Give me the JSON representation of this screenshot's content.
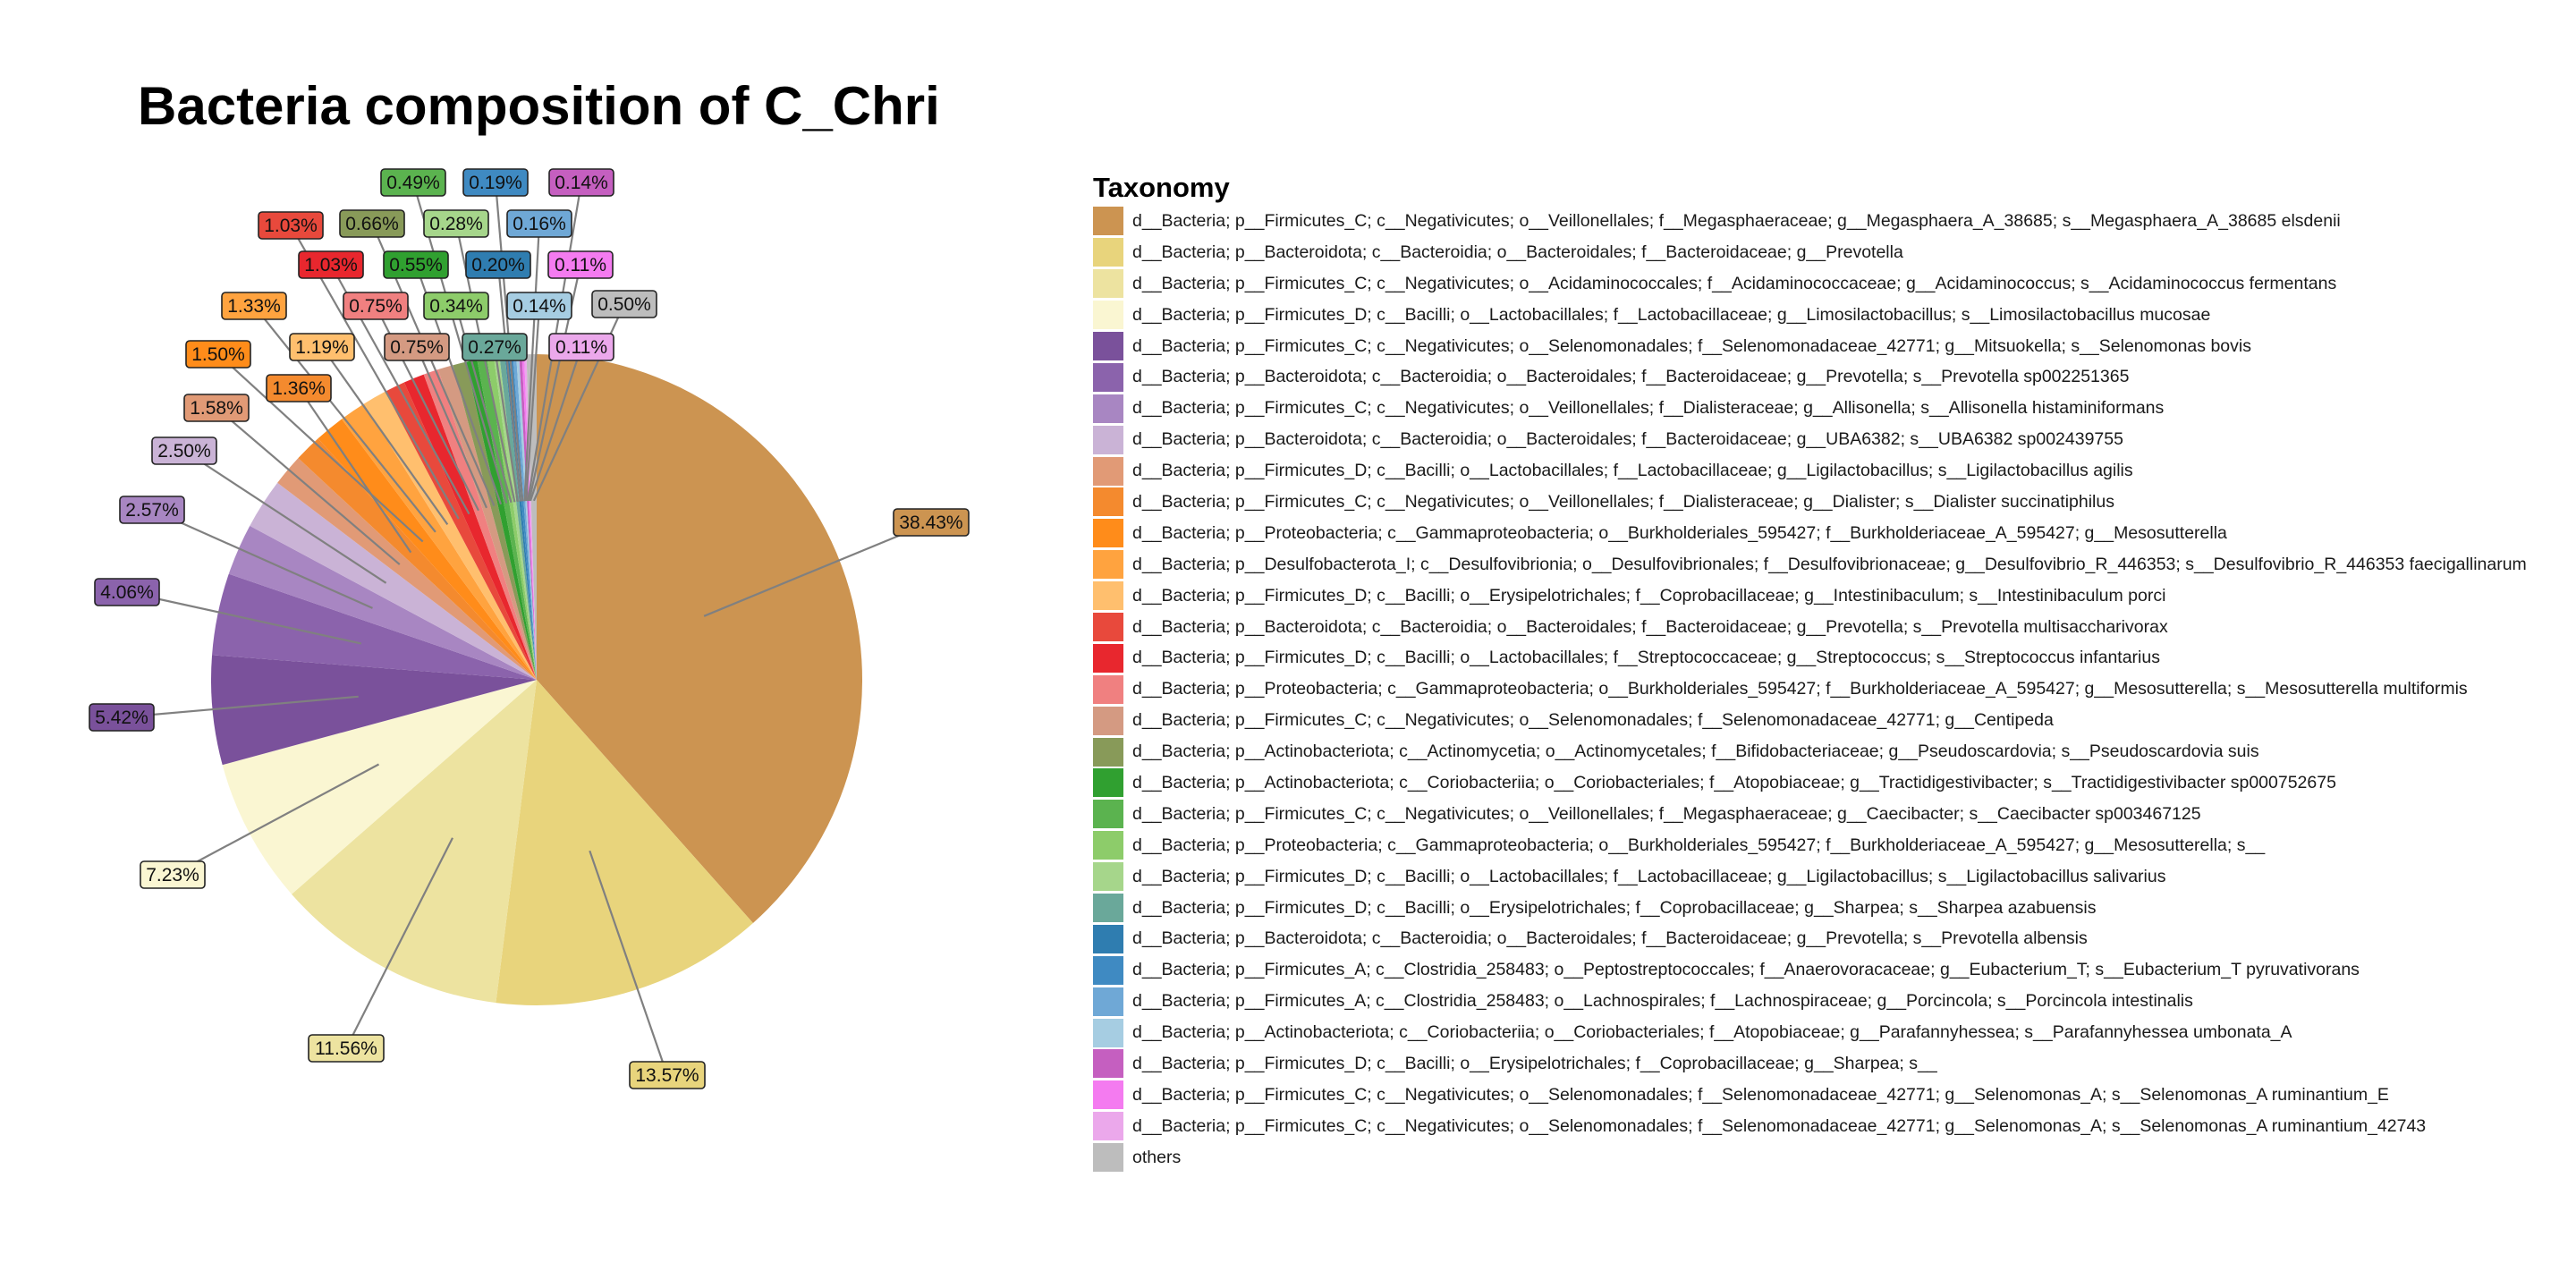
{
  "chart_data": {
    "type": "pie",
    "title": "Bacteria composition of C_Chri",
    "legend_title": "Taxonomy",
    "slices": [
      {
        "label": "d__Bacteria; p__Firmicutes_C; c__Negativicutes; o__Veillonellales; f__Megasphaeraceae; g__Megasphaera_A_38685; s__Megasphaera_A_38685 elsdenii",
        "value": 38.43,
        "text": "38.43%",
        "color": "#CC9451"
      },
      {
        "label": "d__Bacteria; p__Bacteroidota; c__Bacteroidia; o__Bacteroidales; f__Bacteroidaceae; g__Prevotella",
        "value": 13.57,
        "text": "13.57%",
        "color": "#E8D47C"
      },
      {
        "label": "d__Bacteria; p__Firmicutes_C; c__Negativicutes; o__Acidaminococcales; f__Acidaminococcaceae; g__Acidaminococcus; s__Acidaminococcus fermentans",
        "value": 11.56,
        "text": "11.56%",
        "color": "#EDE3A0"
      },
      {
        "label": "d__Bacteria; p__Firmicutes_D; c__Bacilli; o__Lactobacillales; f__Lactobacillaceae; g__Limosilactobacillus; s__Limosilactobacillus mucosae",
        "value": 7.23,
        "text": "7.23%",
        "color": "#FAF6D2"
      },
      {
        "label": "d__Bacteria; p__Firmicutes_C; c__Negativicutes; o__Selenomonadales; f__Selenomonadaceae_42771; g__Mitsuokella; s__Selenomonas bovis",
        "value": 5.42,
        "text": "5.42%",
        "color": "#7A519B"
      },
      {
        "label": "d__Bacteria; p__Bacteroidota; c__Bacteroidia; o__Bacteroidales; f__Bacteroidaceae; g__Prevotella; s__Prevotella sp002251365",
        "value": 4.06,
        "text": "4.06%",
        "color": "#8B63AC"
      },
      {
        "label": "d__Bacteria; p__Firmicutes_C; c__Negativicutes; o__Veillonellales; f__Dialisteraceae; g__Allisonella; s__Allisonella histaminiformans",
        "value": 2.57,
        "text": "2.57%",
        "color": "#A886C2"
      },
      {
        "label": "d__Bacteria; p__Bacteroidota; c__Bacteroidia; o__Bacteroidales; f__Bacteroidaceae; g__UBA6382; s__UBA6382 sp002439755",
        "value": 2.5,
        "text": "2.50%",
        "color": "#CAB3D6"
      },
      {
        "label": "d__Bacteria; p__Firmicutes_D; c__Bacilli; o__Lactobacillales; f__Lactobacillaceae; g__Ligilactobacillus; s__Ligilactobacillus agilis",
        "value": 1.58,
        "text": "1.58%",
        "color": "#E19A76"
      },
      {
        "label": "d__Bacteria; p__Firmicutes_C; c__Negativicutes; o__Veillonellales; f__Dialisteraceae; g__Dialister; s__Dialister succinatiphilus",
        "value": 1.36,
        "text": "1.36%",
        "color": "#F48A2E"
      },
      {
        "label": "d__Bacteria; p__Proteobacteria; c__Gammaproteobacteria; o__Burkholderiales_595427; f__Burkholderiaceae_A_595427; g__Mesosutterella",
        "value": 1.5,
        "text": "1.50%",
        "color": "#FF8C1A"
      },
      {
        "label": "d__Bacteria; p__Desulfobacterota_I; c__Desulfovibrionia; o__Desulfovibrionales; f__Desulfovibrionaceae; g__Desulfovibrio_R_446353; s__Desulfovibrio_R_446353 faecigallinarum",
        "value": 1.33,
        "text": "1.33%",
        "color": "#FFA33F"
      },
      {
        "label": "d__Bacteria; p__Firmicutes_D; c__Bacilli; o__Erysipelotrichales; f__Coprobacillaceae; g__Intestinibaculum; s__Intestinibaculum porci",
        "value": 1.19,
        "text": "1.19%",
        "color": "#FFBF6E"
      },
      {
        "label": "d__Bacteria; p__Bacteroidota; c__Bacteroidia; o__Bacteroidales; f__Bacteroidaceae; g__Prevotella; s__Prevotella multisaccharivorax",
        "value": 1.03,
        "text": "1.03%",
        "color": "#E8493C"
      },
      {
        "label": "d__Bacteria; p__Firmicutes_D; c__Bacilli; o__Lactobacillales; f__Streptococcaceae; g__Streptococcus; s__Streptococcus infantarius",
        "value": 1.03,
        "text": "1.03%",
        "color": "#E8272E"
      },
      {
        "label": "d__Bacteria; p__Proteobacteria; c__Gammaproteobacteria; o__Burkholderiales_595427; f__Burkholderiaceae_A_595427; g__Mesosutterella; s__Mesosutterella multiformis",
        "value": 0.75,
        "text": "0.75%",
        "color": "#F08080"
      },
      {
        "label": "d__Bacteria; p__Firmicutes_C; c__Negativicutes; o__Selenomonadales; f__Selenomonadaceae_42771; g__Centipeda",
        "value": 0.75,
        "text": "0.75%",
        "color": "#D49A82"
      },
      {
        "label": "d__Bacteria; p__Actinobacteriota; c__Actinomycetia; o__Actinomycetales; f__Bifidobacteriaceae; g__Pseudoscardovia; s__Pseudoscardovia suis",
        "value": 0.66,
        "text": "0.66%",
        "color": "#889A59"
      },
      {
        "label": "d__Bacteria; p__Actinobacteriota; c__Coriobacteriia; o__Coriobacteriales; f__Atopobiaceae; g__Tractidigestivibacter; s__Tractidigestivibacter sp000752675",
        "value": 0.55,
        "text": "0.55%",
        "color": "#30A030"
      },
      {
        "label": "d__Bacteria; p__Firmicutes_C; c__Negativicutes; o__Veillonellales; f__Megasphaeraceae; g__Caecibacter; s__Caecibacter sp003467125",
        "value": 0.49,
        "text": "0.49%",
        "color": "#5BB34F"
      },
      {
        "label": "d__Bacteria; p__Proteobacteria; c__Gammaproteobacteria; o__Burkholderiales_595427; f__Burkholderiaceae_A_595427; g__Mesosutterella; s__",
        "value": 0.34,
        "text": "0.34%",
        "color": "#8DCC6A"
      },
      {
        "label": "d__Bacteria; p__Firmicutes_D; c__Bacilli; o__Lactobacillales; f__Lactobacillaceae; g__Ligilactobacillus; s__Ligilactobacillus salivarius",
        "value": 0.28,
        "text": "0.28%",
        "color": "#A6D68B"
      },
      {
        "label": "d__Bacteria; p__Firmicutes_D; c__Bacilli; o__Erysipelotrichales; f__Coprobacillaceae; g__Sharpea; s__Sharpea azabuensis",
        "value": 0.27,
        "text": "0.27%",
        "color": "#6AA89A"
      },
      {
        "label": "d__Bacteria; p__Bacteroidota; c__Bacteroidia; o__Bacteroidales; f__Bacteroidaceae; g__Prevotella; s__Prevotella albensis",
        "value": 0.2,
        "text": "0.20%",
        "color": "#2F7DB0"
      },
      {
        "label": "d__Bacteria; p__Firmicutes_A; c__Clostridia_258483; o__Peptostreptococcales; f__Anaerovoracaceae; g__Eubacterium_T; s__Eubacterium_T pyruvativorans",
        "value": 0.19,
        "text": "0.19%",
        "color": "#3F8AC2"
      },
      {
        "label": "d__Bacteria; p__Firmicutes_A; c__Clostridia_258483; o__Lachnospirales; f__Lachnospiraceae; g__Porcincola; s__Porcincola intestinalis",
        "value": 0.16,
        "text": "0.16%",
        "color": "#6FA8D6"
      },
      {
        "label": "d__Bacteria; p__Actinobacteriota; c__Coriobacteriia; o__Coriobacteriales; f__Atopobiaceae; g__Parafannyhessea; s__Parafannyhessea umbonata_A",
        "value": 0.14,
        "text": "0.14%",
        "color": "#A6CDE2"
      },
      {
        "label": "d__Bacteria; p__Firmicutes_D; c__Bacilli; o__Erysipelotrichales; f__Coprobacillaceae; g__Sharpea; s__",
        "value": 0.14,
        "text": "0.14%",
        "color": "#C55FC0"
      },
      {
        "label": "d__Bacteria; p__Firmicutes_C; c__Negativicutes; o__Selenomonadales; f__Selenomonadaceae_42771; g__Selenomonas_A; s__Selenomonas_A ruminantium_E",
        "value": 0.11,
        "text": "0.11%",
        "color": "#F47BF0"
      },
      {
        "label": "d__Bacteria; p__Firmicutes_C; c__Negativicutes; o__Selenomonadales; f__Selenomonadaceae_42771; g__Selenomonas_A; s__Selenomonas_A ruminantium_42743",
        "value": 0.11,
        "text": "0.11%",
        "color": "#EBA8EB"
      },
      {
        "label": "others",
        "value": 0.5,
        "text": "0.50%",
        "color": "#BDBDBD"
      }
    ]
  }
}
